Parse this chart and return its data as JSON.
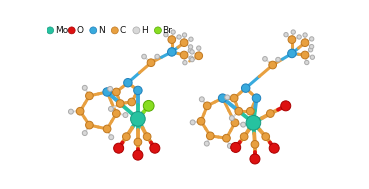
{
  "background_color": "#ffffff",
  "legend_items": [
    {
      "label": "Mo",
      "color": "#26c2a0",
      "edge": "#1a9a80"
    },
    {
      "label": "O",
      "color": "#dd1111",
      "edge": "#aa0000"
    },
    {
      "label": "N",
      "color": "#38aadd",
      "edge": "#2080bb"
    },
    {
      "label": "C",
      "color": "#e8a040",
      "edge": "#c07820"
    },
    {
      "label": "H",
      "color": "#d8d8d8",
      "edge": "#aaaaaa"
    },
    {
      "label": "Br",
      "color": "#88dd22",
      "edge": "#55aa00"
    }
  ],
  "Mo_color": "#26c2a0",
  "Mo_edge": "#1a9a80",
  "O_color": "#dd1111",
  "O_edge": "#aa0000",
  "N_color": "#38aadd",
  "N_edge": "#2080bb",
  "C_color": "#e8a040",
  "C_edge": "#c07820",
  "H_color": "#d8d8d8",
  "H_edge": "#aaaaaa",
  "Br_color": "#88dd22",
  "Br_edge": "#55aa00",
  "bond_color": "#c08830"
}
